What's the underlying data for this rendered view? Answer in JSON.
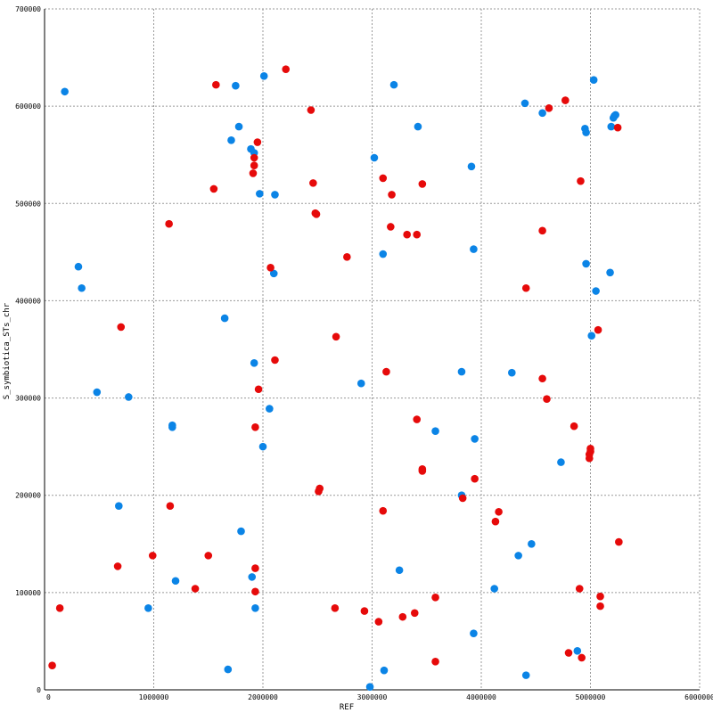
{
  "chart_data": {
    "type": "scatter",
    "title": "",
    "xlabel": "REF",
    "ylabel": "S_symbiotica_STs_chr",
    "xlim": [
      0,
      6000000
    ],
    "ylim": [
      0,
      700000
    ],
    "x_ticks": [
      0,
      1000000,
      2000000,
      3000000,
      4000000,
      5000000,
      6000000
    ],
    "y_ticks": [
      0,
      100000,
      200000,
      300000,
      400000,
      500000,
      600000,
      700000
    ],
    "x_tick_labels": [
      "0",
      "1000000",
      "2000000",
      "3000000",
      "4000000",
      "5000000",
      "6000000"
    ],
    "y_tick_labels": [
      "0",
      "100000",
      "200000",
      "300000",
      "400000",
      "500000",
      "600000",
      "700000"
    ],
    "grid": true,
    "legend": "none",
    "series": [
      {
        "color": "#0b84e6",
        "points": [
          [
            185000,
            615000
          ],
          [
            310000,
            435000
          ],
          [
            340000,
            413000
          ],
          [
            480000,
            306000
          ],
          [
            770000,
            301000
          ],
          [
            680000,
            189000
          ],
          [
            950000,
            84000
          ],
          [
            1170000,
            272000
          ],
          [
            1170000,
            270000
          ],
          [
            1200000,
            112000
          ],
          [
            1650000,
            382000
          ],
          [
            1710000,
            565000
          ],
          [
            1750000,
            621000
          ],
          [
            1780000,
            579000
          ],
          [
            1800000,
            163000
          ],
          [
            1680000,
            21000
          ],
          [
            1890000,
            556000
          ],
          [
            1900000,
            116000
          ],
          [
            1920000,
            552000
          ],
          [
            1920000,
            336000
          ],
          [
            1930000,
            84000
          ],
          [
            1970000,
            510000
          ],
          [
            2000000,
            250000
          ],
          [
            2010000,
            631000
          ],
          [
            2060000,
            289000
          ],
          [
            2100000,
            428000
          ],
          [
            2110000,
            509000
          ],
          [
            2900000,
            315000
          ],
          [
            2980000,
            3000
          ],
          [
            3020000,
            547000
          ],
          [
            3100000,
            448000
          ],
          [
            3110000,
            20000
          ],
          [
            3200000,
            622000
          ],
          [
            3250000,
            123000
          ],
          [
            3420000,
            579000
          ],
          [
            3580000,
            266000
          ],
          [
            3820000,
            327000
          ],
          [
            3820000,
            200000
          ],
          [
            3910000,
            538000
          ],
          [
            3930000,
            453000
          ],
          [
            3940000,
            258000
          ],
          [
            3930000,
            58000
          ],
          [
            4120000,
            104000
          ],
          [
            4280000,
            326000
          ],
          [
            4340000,
            138000
          ],
          [
            4400000,
            603000
          ],
          [
            4410000,
            15000
          ],
          [
            4460000,
            150000
          ],
          [
            4560000,
            593000
          ],
          [
            4730000,
            234000
          ],
          [
            4880000,
            40000
          ],
          [
            4950000,
            577000
          ],
          [
            4960000,
            573000
          ],
          [
            4960000,
            438000
          ],
          [
            5010000,
            364000
          ],
          [
            5030000,
            627000
          ],
          [
            5050000,
            410000
          ],
          [
            5180000,
            429000
          ],
          [
            5190000,
            579000
          ],
          [
            5210000,
            588000
          ],
          [
            5220000,
            590000
          ],
          [
            5230000,
            591000
          ]
        ]
      },
      {
        "color": "#e60a0a",
        "points": [
          [
            70000,
            25000
          ],
          [
            140000,
            84000
          ],
          [
            670000,
            127000
          ],
          [
            700000,
            373000
          ],
          [
            990000,
            138000
          ],
          [
            1140000,
            479000
          ],
          [
            1150000,
            189000
          ],
          [
            1380000,
            104000
          ],
          [
            1500000,
            138000
          ],
          [
            1550000,
            515000
          ],
          [
            1570000,
            622000
          ],
          [
            1910000,
            531000
          ],
          [
            1920000,
            547000
          ],
          [
            1920000,
            539000
          ],
          [
            1930000,
            125000
          ],
          [
            1930000,
            101000
          ],
          [
            1930000,
            270000
          ],
          [
            1950000,
            563000
          ],
          [
            1960000,
            309000
          ],
          [
            2070000,
            434000
          ],
          [
            2110000,
            339000
          ],
          [
            2210000,
            638000
          ],
          [
            2440000,
            596000
          ],
          [
            2460000,
            521000
          ],
          [
            2480000,
            490000
          ],
          [
            2490000,
            489000
          ],
          [
            2520000,
            207000
          ],
          [
            2510000,
            204000
          ],
          [
            2660000,
            84000
          ],
          [
            2670000,
            363000
          ],
          [
            2770000,
            445000
          ],
          [
            2930000,
            81000
          ],
          [
            3060000,
            70000
          ],
          [
            3100000,
            526000
          ],
          [
            3100000,
            184000
          ],
          [
            3130000,
            327000
          ],
          [
            3170000,
            476000
          ],
          [
            3180000,
            509000
          ],
          [
            3280000,
            75000
          ],
          [
            3320000,
            468000
          ],
          [
            3390000,
            79000
          ],
          [
            3410000,
            468000
          ],
          [
            3410000,
            278000
          ],
          [
            3460000,
            520000
          ],
          [
            3460000,
            225000
          ],
          [
            3460000,
            227000
          ],
          [
            3580000,
            95000
          ],
          [
            3580000,
            29000
          ],
          [
            3830000,
            197000
          ],
          [
            3940000,
            217000
          ],
          [
            4130000,
            173000
          ],
          [
            4160000,
            183000
          ],
          [
            4410000,
            413000
          ],
          [
            4560000,
            472000
          ],
          [
            4560000,
            320000
          ],
          [
            4600000,
            299000
          ],
          [
            4620000,
            598000
          ],
          [
            4770000,
            606000
          ],
          [
            4800000,
            38000
          ],
          [
            4850000,
            271000
          ],
          [
            4900000,
            104000
          ],
          [
            4910000,
            523000
          ],
          [
            4920000,
            33000
          ],
          [
            4990000,
            238000
          ],
          [
            4990000,
            242000
          ],
          [
            5000000,
            245000
          ],
          [
            5000000,
            248000
          ],
          [
            5070000,
            370000
          ],
          [
            5090000,
            96000
          ],
          [
            5090000,
            86000
          ],
          [
            5250000,
            578000
          ],
          [
            5260000,
            152000
          ]
        ]
      }
    ]
  }
}
